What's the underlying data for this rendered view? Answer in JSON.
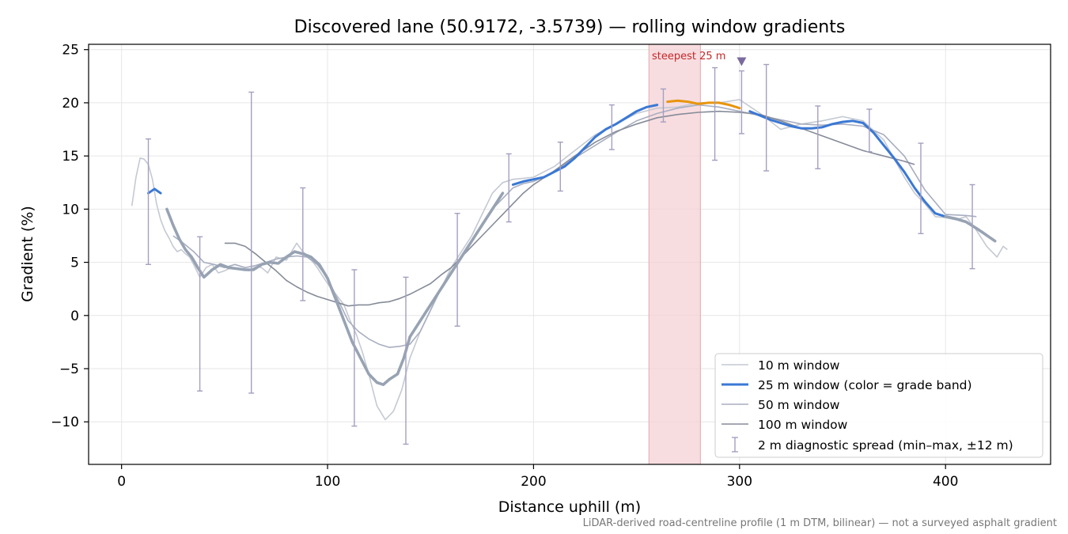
{
  "chart_data": {
    "type": "line",
    "title": "Discovered lane (50.9172, -3.5739) — rolling window gradients",
    "xlabel": "Distance uphill (m)",
    "ylabel": "Gradient (%)",
    "xlim": [
      -16,
      451
    ],
    "ylim": [
      -14.0,
      25.5
    ],
    "x_ticks": [
      0,
      100,
      200,
      300,
      400
    ],
    "x_tick_labels": [
      "0",
      "100",
      "200",
      "300",
      "400"
    ],
    "y_ticks": [
      -10,
      -5,
      0,
      5,
      10,
      15,
      20,
      25
    ],
    "y_tick_labels": [
      "−10",
      "−5",
      "0",
      "5",
      "10",
      "15",
      "20",
      "25"
    ],
    "grid": true,
    "legend_position": "lower right",
    "footnote": "LiDAR-derived road-centreline profile (1 m DTM, bilinear) — not a surveyed asphalt gradient",
    "highlight": {
      "label": "steepest 25 m",
      "x_range": [
        256,
        281
      ],
      "marker_x": 301,
      "marker_y": 23.9
    },
    "colors": {
      "w10": "#c4c9d2",
      "w25": "#3a78d4",
      "w25_grey": "#97a3b3",
      "w25_orange": "#e8950c",
      "w50": "#a8aec0",
      "w100": "#858b98",
      "errorbar": "#a49fc0",
      "band": "#f4d2d6",
      "marker": "#7b6a9e",
      "highlight_text": "#c62828"
    },
    "series": [
      {
        "name": "10 m window",
        "x": [
          5,
          7,
          9,
          11,
          13,
          15,
          17,
          19,
          21,
          23,
          25,
          27,
          29,
          31,
          33,
          35,
          38,
          41,
          44,
          47,
          50,
          53,
          56,
          59,
          62,
          64,
          66,
          68,
          71,
          75,
          80,
          85,
          88,
          91,
          95,
          100,
          104,
          108,
          111,
          114,
          117,
          120,
          124,
          128,
          132,
          136,
          140,
          145,
          150,
          155,
          160,
          165,
          170,
          175,
          180,
          185,
          190,
          195,
          200,
          210,
          220,
          230,
          240,
          250,
          260,
          270,
          280,
          290,
          300,
          310,
          320,
          330,
          340,
          350,
          360,
          370,
          380,
          385,
          390,
          395,
          400,
          405,
          410,
          415,
          420,
          425,
          428,
          430
        ],
        "y": [
          10.3,
          13.0,
          14.8,
          14.7,
          14.2,
          12.8,
          10.5,
          9.0,
          8.0,
          7.3,
          6.5,
          6.0,
          6.2,
          5.8,
          5.5,
          4.8,
          3.6,
          4.5,
          4.8,
          4.0,
          4.2,
          4.5,
          4.4,
          4.3,
          4.2,
          4.5,
          4.6,
          4.5,
          4.0,
          5.5,
          5.2,
          6.8,
          6.0,
          5.5,
          4.5,
          3.0,
          2.0,
          1.0,
          -0.5,
          -1.8,
          -3.5,
          -5.5,
          -8.5,
          -9.8,
          -9.0,
          -7.0,
          -4.0,
          -1.5,
          0.5,
          2.5,
          4.5,
          6.0,
          7.5,
          9.5,
          11.5,
          12.5,
          12.8,
          12.9,
          13.0,
          14.0,
          15.5,
          17.0,
          18.0,
          19.0,
          19.5,
          19.6,
          20.0,
          20.0,
          20.3,
          19.0,
          17.5,
          18.0,
          18.3,
          18.7,
          18.3,
          16.5,
          13.0,
          11.5,
          10.5,
          9.3,
          9.2,
          9.0,
          9.3,
          8.0,
          6.5,
          5.5,
          6.5,
          6.2
        ]
      },
      {
        "name": "25 m window (color = grade band)",
        "x": [
          13,
          16,
          19,
          22,
          25,
          28,
          31,
          34,
          37,
          40,
          44,
          48,
          52,
          56,
          60,
          64,
          68,
          72,
          76,
          80,
          84,
          88,
          92,
          96,
          100,
          104,
          108,
          112,
          116,
          120,
          124,
          127,
          130,
          134,
          137,
          140,
          145,
          150,
          155,
          160,
          165,
          170,
          175,
          180,
          185,
          190,
          195,
          200,
          205,
          210,
          215,
          220,
          225,
          230,
          235,
          240,
          245,
          250,
          255,
          260,
          265,
          270,
          275,
          280,
          285,
          290,
          295,
          300,
          305,
          310,
          315,
          320,
          325,
          330,
          335,
          340,
          345,
          350,
          355,
          360,
          365,
          370,
          375,
          380,
          385,
          390,
          395,
          400,
          405,
          410,
          415,
          418,
          421,
          424
        ],
        "y": [
          11.5,
          11.9,
          11.5,
          10.0,
          8.5,
          7.2,
          6.2,
          5.5,
          4.5,
          3.6,
          4.3,
          4.8,
          4.5,
          4.4,
          4.3,
          4.3,
          4.8,
          5.0,
          4.9,
          5.5,
          6.0,
          5.8,
          5.5,
          4.8,
          3.5,
          1.5,
          -0.5,
          -2.5,
          -4.0,
          -5.5,
          -6.3,
          -6.5,
          -6.0,
          -5.5,
          -4.0,
          -2.0,
          -0.5,
          1.0,
          2.5,
          4.0,
          5.5,
          7.0,
          8.5,
          10.0,
          11.5,
          12.3,
          12.6,
          12.8,
          13.0,
          13.5,
          14.0,
          14.8,
          15.8,
          16.8,
          17.5,
          18.0,
          18.6,
          19.2,
          19.6,
          19.8,
          20.1,
          20.2,
          20.1,
          19.9,
          20.0,
          20.0,
          19.8,
          19.5,
          19.2,
          18.8,
          18.4,
          18.1,
          17.8,
          17.6,
          17.6,
          17.7,
          18.0,
          18.2,
          18.3,
          18.1,
          17.2,
          16.0,
          14.8,
          13.5,
          12.0,
          10.7,
          9.6,
          9.3,
          9.1,
          8.8,
          8.2,
          7.8,
          7.4,
          7.0
        ],
        "segments": [
          {
            "color_key": "w25",
            "x_range": [
              13,
              20
            ]
          },
          {
            "color_key": "w25_grey",
            "x_range": [
              20,
              140
            ]
          },
          {
            "color_key": "w25_grey",
            "x_range": [
              140,
              187
            ]
          },
          {
            "color_key": "w25",
            "x_range": [
              187,
              262
            ]
          },
          {
            "color_key": "w25_orange",
            "x_range": [
              262,
              302
            ]
          },
          {
            "color_key": "w25",
            "x_range": [
              302,
              400
            ]
          },
          {
            "color_key": "w25_grey",
            "x_range": [
              400,
              424
            ]
          }
        ]
      },
      {
        "name": "50 m window",
        "x": [
          25,
          30,
          35,
          40,
          45,
          50,
          55,
          60,
          65,
          70,
          75,
          80,
          85,
          90,
          95,
          100,
          105,
          110,
          115,
          120,
          125,
          130,
          135,
          140,
          145,
          150,
          155,
          160,
          165,
          170,
          175,
          180,
          185,
          190,
          195,
          200,
          210,
          220,
          230,
          240,
          250,
          260,
          270,
          280,
          290,
          300,
          310,
          320,
          330,
          340,
          350,
          360,
          370,
          380,
          390,
          400,
          410,
          415
        ],
        "y": [
          7.5,
          6.8,
          6.0,
          5.0,
          4.8,
          4.5,
          4.8,
          4.5,
          4.7,
          5.0,
          5.3,
          5.5,
          5.6,
          5.5,
          4.8,
          3.5,
          1.5,
          -0.5,
          -1.5,
          -2.2,
          -2.7,
          -3.0,
          -2.9,
          -2.7,
          -1.5,
          0.5,
          2.5,
          4.0,
          5.5,
          7.0,
          8.5,
          10.0,
          11.0,
          12.0,
          12.4,
          12.6,
          13.5,
          14.8,
          16.0,
          17.2,
          18.3,
          19.0,
          19.5,
          19.8,
          19.6,
          19.2,
          18.8,
          18.4,
          18.0,
          17.9,
          18.0,
          17.8,
          17.0,
          15.0,
          11.8,
          9.5,
          9.4,
          9.3
        ]
      },
      {
        "name": "100 m window",
        "x": [
          50,
          55,
          60,
          65,
          70,
          75,
          80,
          85,
          90,
          95,
          100,
          105,
          110,
          115,
          120,
          125,
          130,
          135,
          140,
          145,
          150,
          155,
          160,
          165,
          170,
          175,
          180,
          185,
          190,
          195,
          200,
          210,
          220,
          230,
          240,
          250,
          260,
          270,
          280,
          290,
          300,
          310,
          320,
          330,
          340,
          350,
          360,
          370,
          380,
          385
        ],
        "y": [
          6.8,
          6.8,
          6.5,
          5.8,
          5.0,
          4.2,
          3.3,
          2.7,
          2.2,
          1.8,
          1.5,
          1.2,
          0.9,
          1.0,
          1.0,
          1.2,
          1.3,
          1.6,
          2.0,
          2.5,
          3.0,
          3.8,
          4.5,
          5.5,
          6.5,
          7.5,
          8.5,
          9.5,
          10.5,
          11.5,
          12.3,
          13.6,
          15.0,
          16.3,
          17.3,
          18.0,
          18.6,
          18.9,
          19.1,
          19.2,
          19.1,
          18.9,
          18.3,
          17.6,
          16.9,
          16.2,
          15.5,
          15.0,
          14.5,
          14.2
        ]
      }
    ],
    "error_bars": {
      "label": "2 m diagnostic spread (min–max, ±12 m)",
      "x": [
        13,
        38,
        63,
        88,
        113,
        138,
        163,
        188,
        213,
        238,
        263,
        288,
        301,
        313,
        338,
        363,
        388,
        413
      ],
      "min": [
        4.8,
        -7.1,
        -7.3,
        1.4,
        -10.4,
        -12.1,
        -1.0,
        8.8,
        11.7,
        15.6,
        18.2,
        14.6,
        17.1,
        13.6,
        13.8,
        15.4,
        7.7,
        4.4
      ],
      "max": [
        16.6,
        7.4,
        21.0,
        12.0,
        4.3,
        3.6,
        9.6,
        15.2,
        16.3,
        19.8,
        21.3,
        23.3,
        23.0,
        23.6,
        19.7,
        19.4,
        16.2,
        12.3
      ]
    }
  }
}
